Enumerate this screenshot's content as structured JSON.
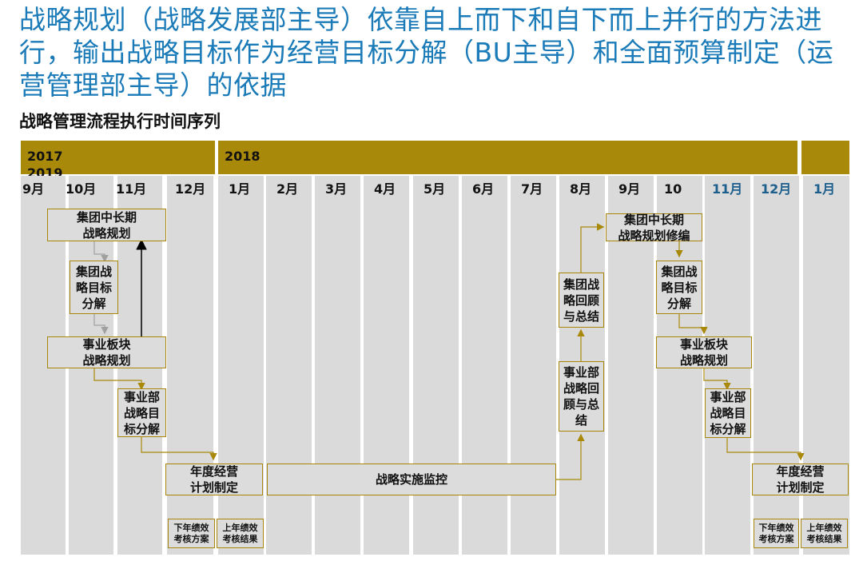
{
  "headline": "战略规划（战略发展部主导）依靠自上而下和自下而上并行的方法进行，输出战略目标作为经营目标分解（BU主导）和全面预算制定（运营管理部主导）的依据",
  "subtitle": "战略管理流程执行时间序列",
  "years": {
    "y2017": "2017",
    "y2018": "2018",
    "y2019": "2019"
  },
  "months": [
    "9月",
    "10月",
    "11月",
    "12月",
    "1月",
    "2月",
    "3月",
    "4月",
    "5月",
    "6月",
    "7月",
    "8月",
    "9月",
    "10",
    "11月",
    "12月",
    "1月"
  ],
  "boxes": {
    "group_longterm": "集团中长期\n战略规划",
    "group_target": "集团战\n略目标\n分解",
    "bu_plan": "事业板块\n战略规划",
    "dept_target": "事业部\n战略目\n标分解",
    "annual_plan": "年度经营\n计划制定",
    "monitor": "战略实施监控",
    "dept_review": "事业部\n战略回\n顾与总\n结",
    "group_review": "集团战\n略回顾\n与总结",
    "group_longterm_rev": "集团中长期\n战略规划修编",
    "group_target_2": "集团战\n略目标\n分解",
    "bu_plan_2": "事业板块\n战略规划",
    "dept_target_2": "事业部\n战略目\n标分解",
    "annual_plan_2": "年度经营\n计划制定",
    "kpi_next_1": "下年绩效\n考核方案",
    "kpi_prev_1": "上年绩效\n考核结果",
    "kpi_next_2": "下年绩效\n考核方案",
    "kpi_prev_2": "上年绩效\n考核结果"
  },
  "colors": {
    "accent": "#a9890a",
    "headline": "#1b7bb8",
    "month_blue": "#1c5e8c"
  }
}
